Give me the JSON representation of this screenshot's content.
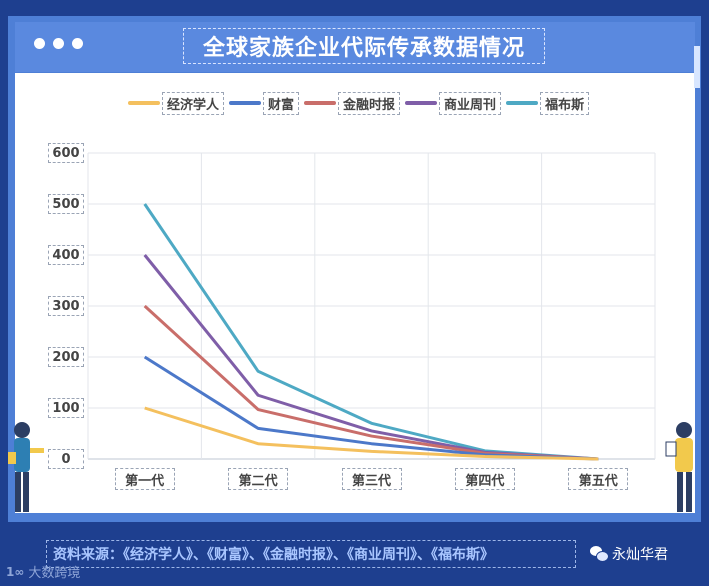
{
  "header": {
    "title": "全球家族企业代际传承数据情况"
  },
  "chart_data": {
    "type": "line",
    "title": "全球家族企业代际传承数据情况",
    "xlabel": "",
    "ylabel": "",
    "categories": [
      "第一代",
      "第二代",
      "第三代",
      "第四代",
      "第五代"
    ],
    "ylim": [
      0,
      600
    ],
    "yticks": [
      0,
      100,
      200,
      300,
      400,
      500,
      600
    ],
    "grid": true,
    "legend_position": "top",
    "stacked": true,
    "series": [
      {
        "name": "经济学人",
        "color": "#f4c05e",
        "values": [
          100,
          30,
          15,
          5,
          0
        ]
      },
      {
        "name": "财富",
        "color": "#4c78c9",
        "values": [
          100,
          30,
          15,
          3,
          0
        ]
      },
      {
        "name": "金融时报",
        "color": "#c96e6a",
        "values": [
          100,
          37,
          15,
          3,
          0
        ]
      },
      {
        "name": "商业周刊",
        "color": "#7f5ea8",
        "values": [
          100,
          28,
          10,
          2,
          0
        ]
      },
      {
        "name": "福布斯",
        "color": "#4ea9c4",
        "values": [
          100,
          47,
          15,
          3,
          0
        ]
      }
    ]
  },
  "footer": {
    "source": "资料来源：《经济学人》、《财富》、《金融时报》、《商业周刊》、《福布斯》",
    "account": "永灿华君",
    "watermark": "大数跨境",
    "watermark_logo": "1∞"
  }
}
